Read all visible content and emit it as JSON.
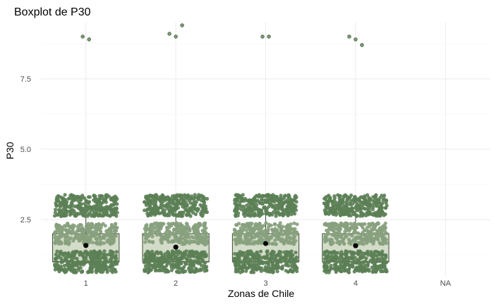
{
  "chart_data": {
    "type": "boxplot",
    "title": "Boxplot de P30",
    "xlabel": "Zonas de Chile",
    "ylabel": "P30",
    "categories": [
      "1",
      "2",
      "3",
      "4",
      "NA"
    ],
    "y_ticks": [
      "2.5",
      "5.0",
      "7.5"
    ],
    "y_tick_values": [
      2.5,
      5.0,
      7.5
    ],
    "ylim": [
      0.5,
      9.5
    ],
    "grid": true,
    "colors": {
      "box_fill": "#d3dcc8",
      "box_stroke": "#3a4a32",
      "jitter_dark": "#5c7f55",
      "jitter_light": "#87a07d",
      "mean_point": "#000000",
      "outlier": "#7a9a70"
    },
    "boxes": [
      {
        "category": "1",
        "q1": 1.0,
        "median": 1.0,
        "q3": 2.0,
        "whisker_low": 1.0,
        "whisker_high": 3.0,
        "mean": 1.58,
        "outliers": [
          9.0,
          8.9
        ]
      },
      {
        "category": "2",
        "q1": 1.0,
        "median": 1.0,
        "q3": 2.0,
        "whisker_low": 1.0,
        "whisker_high": 3.0,
        "mean": 1.52,
        "outliers": [
          9.1,
          9.0,
          9.4
        ]
      },
      {
        "category": "3",
        "q1": 1.0,
        "median": 1.0,
        "q3": 2.0,
        "whisker_low": 1.0,
        "whisker_high": 3.0,
        "mean": 1.65,
        "outliers": [
          9.0,
          9.0
        ]
      },
      {
        "category": "4",
        "q1": 1.0,
        "median": 1.0,
        "q3": 2.0,
        "whisker_low": 1.0,
        "whisker_high": 3.0,
        "mean": 1.57,
        "outliers": [
          9.0,
          8.9,
          8.7
        ]
      }
    ],
    "jitter_levels": [
      1,
      2,
      3
    ],
    "jitter_spread": 0.35
  }
}
